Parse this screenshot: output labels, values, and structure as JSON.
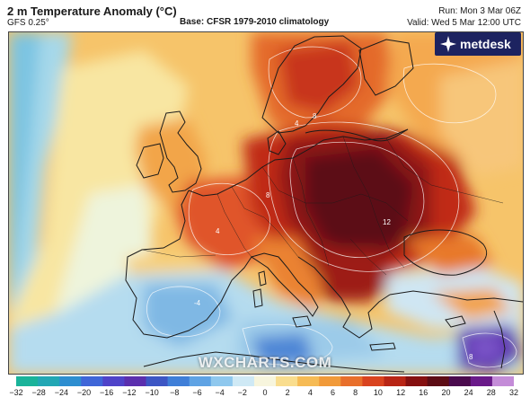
{
  "header": {
    "title": "2 m Temperature Anomaly (°C)",
    "model": "GFS 0.25°",
    "base": "Base: CFSR 1979-2010 climatology",
    "run": "Run: Mon 3 Mar 06Z",
    "valid": "Valid: Wed 5 Mar 12:00 UTC"
  },
  "branding": {
    "logo_text": "metdesk",
    "logo_icon": "metdesk-logo-icon",
    "watermark": "WXCHARTS.COM"
  },
  "map": {
    "region": "Europe",
    "projection_shading": "temperature anomaly",
    "contour_labels": [
      "4",
      "8",
      "12",
      "4",
      "8",
      "-4",
      "8"
    ]
  },
  "scale": {
    "ticks": [
      "−32",
      "−28",
      "−24",
      "−20",
      "−16",
      "−12",
      "−10",
      "−8",
      "−6",
      "−4",
      "−2",
      "0",
      "2",
      "4",
      "6",
      "8",
      "10",
      "12",
      "16",
      "20",
      "24",
      "28",
      "32"
    ],
    "colors": [
      "#1ab39a",
      "#22a7b4",
      "#2d8ed0",
      "#3f66d8",
      "#4f43c9",
      "#5b2fae",
      "#3d56c4",
      "#3f7fd8",
      "#5fa3e4",
      "#8fc8ee",
      "#cfe9f5",
      "#f7f5dd",
      "#f9dd8e",
      "#f6bb55",
      "#f19a39",
      "#e86f2b",
      "#d9431f",
      "#b82515",
      "#851010",
      "#5c0c14",
      "#4a0a4d",
      "#6a1a8a",
      "#c48cd8"
    ]
  }
}
